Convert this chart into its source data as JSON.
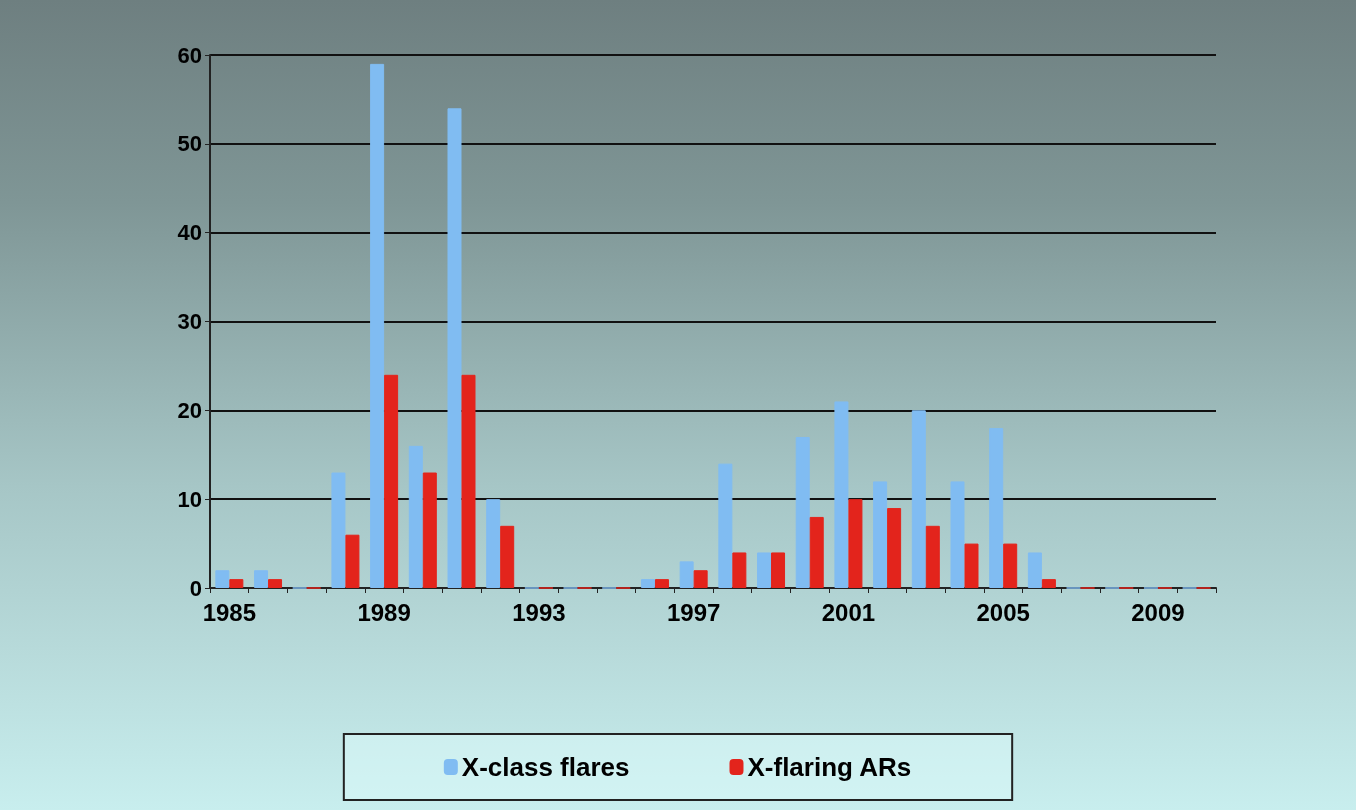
{
  "chart_data": {
    "type": "bar",
    "categories": [
      "1985",
      null,
      null,
      null,
      "1989",
      null,
      null,
      null,
      "1993",
      null,
      null,
      null,
      "1997",
      null,
      null,
      null,
      "2001",
      null,
      null,
      null,
      "2005",
      null,
      null,
      null,
      "2009",
      null
    ],
    "series": [
      {
        "name": "X-class flares",
        "color": "#80bcf2",
        "values": [
          2,
          2,
          0,
          13,
          59,
          16,
          54,
          10,
          0,
          0,
          0,
          1,
          3,
          14,
          4,
          17,
          21,
          12,
          20,
          12,
          18,
          4,
          0,
          0,
          0,
          0
        ]
      },
      {
        "name": "X-flaring ARs",
        "color": "#e3241c",
        "values": [
          1,
          1,
          0,
          6,
          24,
          13,
          24,
          7,
          0,
          0,
          0,
          1,
          2,
          4,
          4,
          8,
          10,
          9,
          7,
          5,
          5,
          1,
          0,
          0,
          0,
          0
        ]
      }
    ],
    "ylim": [
      0,
      60
    ],
    "yticks": [
      0,
      10,
      20,
      30,
      40,
      50,
      60
    ],
    "grid": "y",
    "legend": "bottom"
  }
}
